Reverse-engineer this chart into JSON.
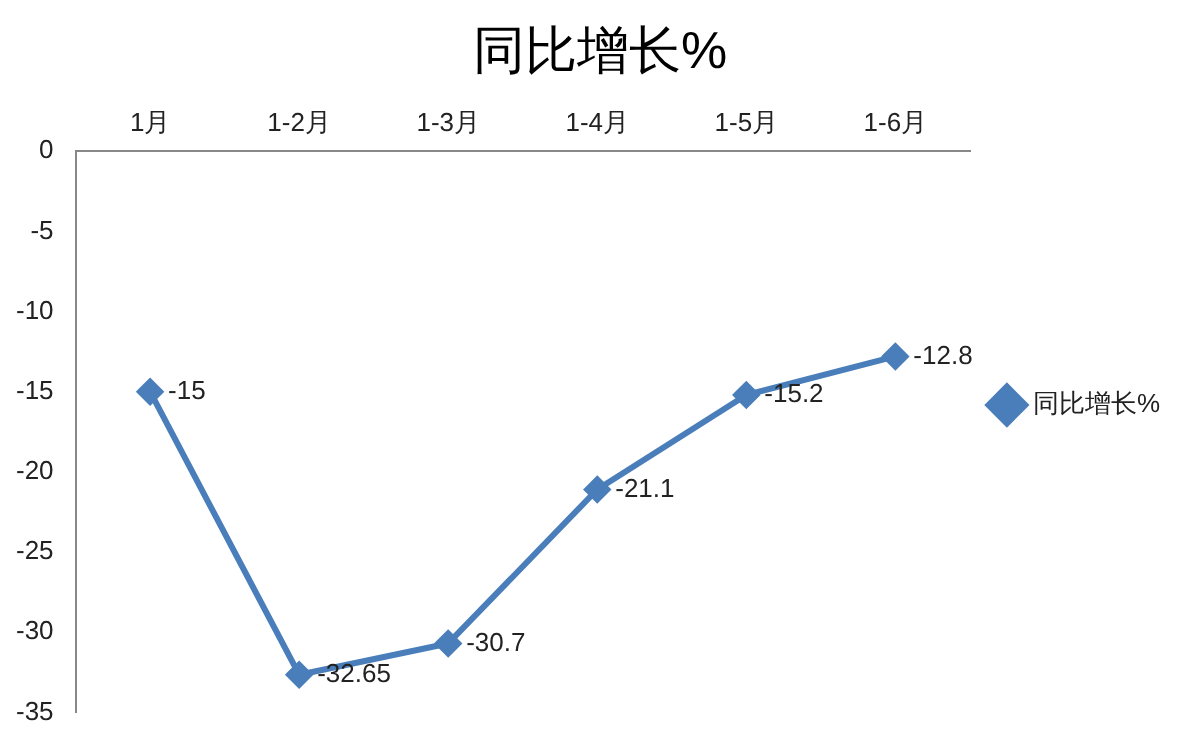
{
  "chart_data": {
    "type": "line",
    "title": "同比增长%",
    "categories": [
      "1月",
      "1-2月",
      "1-3月",
      "1-4月",
      "1-5月",
      "1-6月"
    ],
    "series": [
      {
        "name": "同比增长%",
        "color": "#4a7ebb",
        "values": [
          -15,
          -32.65,
          -30.7,
          -21.1,
          -15.2,
          -12.8
        ]
      }
    ],
    "ylim": [
      -35,
      0
    ],
    "yticks": [
      -35,
      -30,
      -25,
      -20,
      -15,
      -10,
      -5,
      0
    ],
    "grid": false,
    "legend": "right",
    "marker": "diamond",
    "line_style": "solid",
    "data_labels": true
  }
}
